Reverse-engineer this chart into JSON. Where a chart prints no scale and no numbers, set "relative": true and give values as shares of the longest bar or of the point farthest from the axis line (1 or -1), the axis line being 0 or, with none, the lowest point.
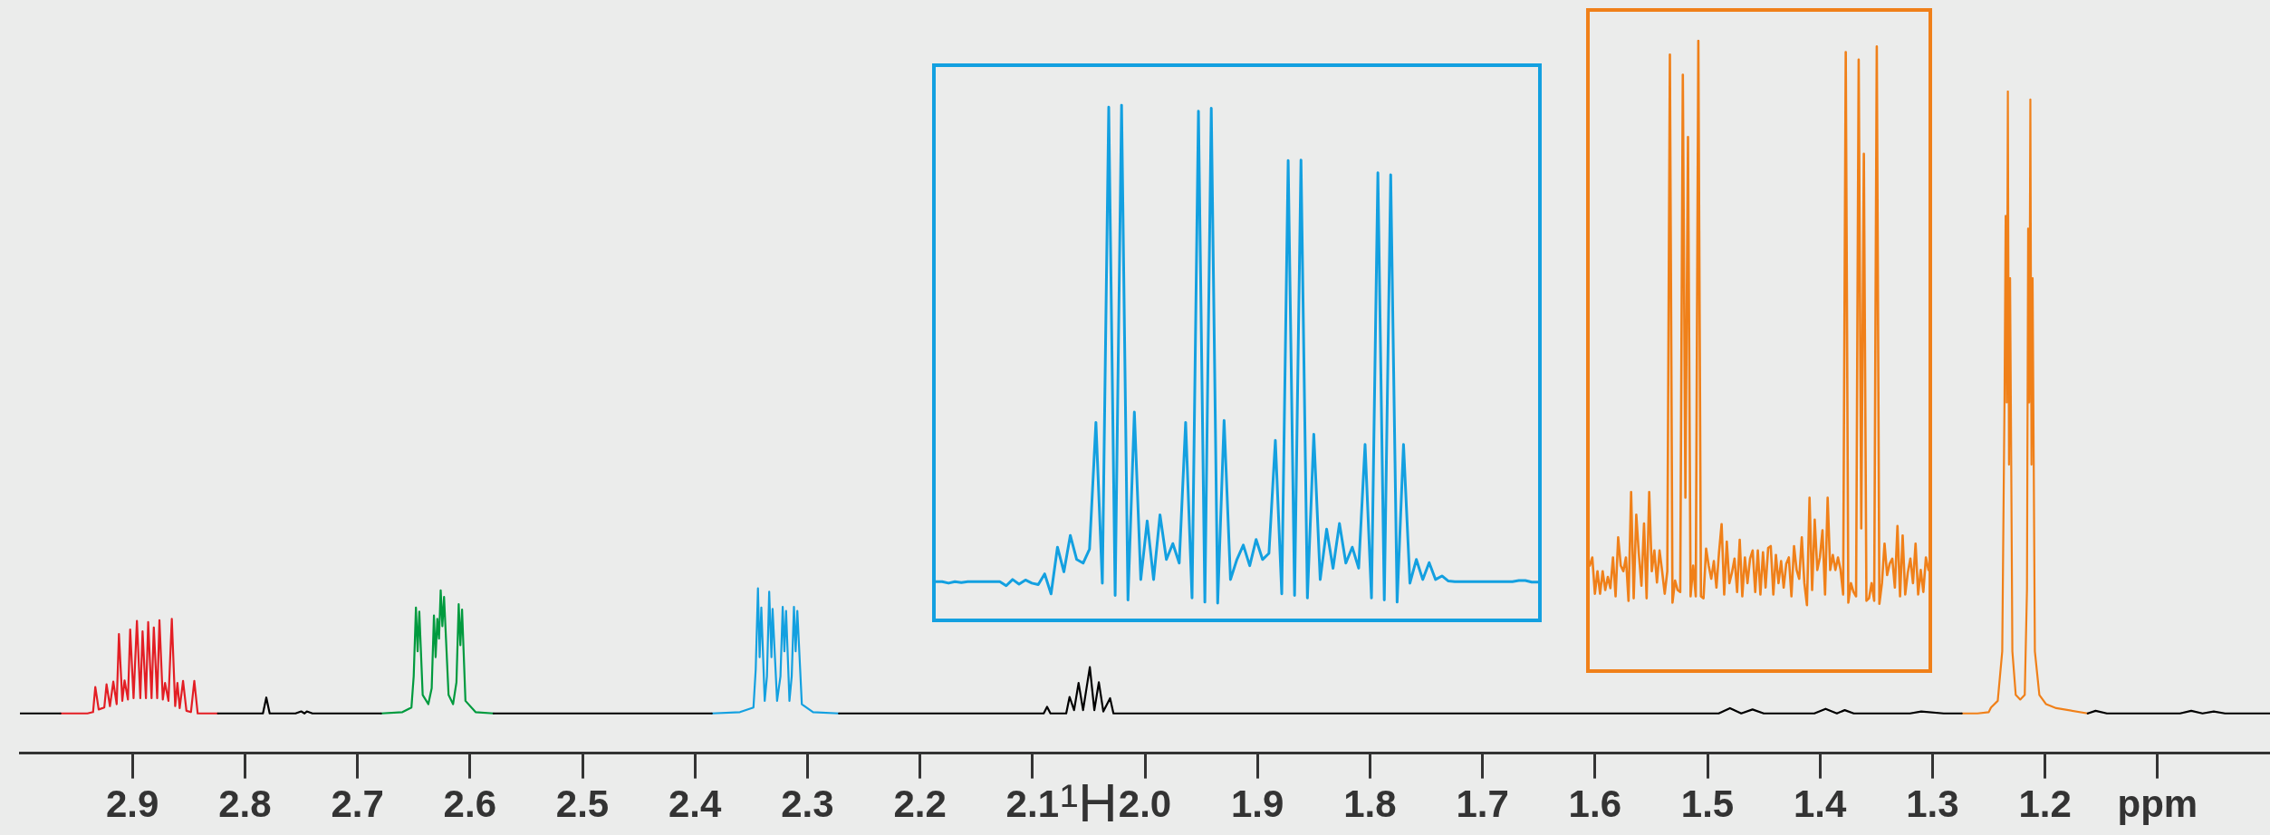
{
  "chart_data": [
    {
      "type": "line",
      "relative": true,
      "xlabel": "¹H",
      "xlim": [
        3.0,
        1.0
      ],
      "xticks": [
        2.9,
        2.8,
        2.7,
        2.6,
        2.5,
        2.4,
        2.3,
        2.2,
        2.1,
        {
          "value": 2.0,
          "label": "2.0"
        },
        1.9,
        1.8,
        1.7,
        1.6,
        1.5,
        1.4,
        1.3,
        1.2,
        {
          "value": 1.1,
          "label": "ppm"
        }
      ],
      "tick_labels": "x",
      "grid": false,
      "marker": "none",
      "line_style": "solid",
      "series": [
        {
          "color": "#000000",
          "x": [
            3.0,
            2.98,
            2.964,
            2.9,
            2.824,
            2.8,
            2.784,
            2.781,
            2.778,
            2.755,
            2.75,
            2.747,
            2.745,
            2.74,
            2.7,
            2.679,
            2.6,
            2.579,
            2.5,
            2.45,
            2.385,
            2.3,
            2.272,
            2.2,
            2.1,
            2.09,
            2.087,
            2.084,
            2.07,
            2.067,
            2.063,
            2.059,
            2.055,
            2.049,
            2.045,
            2.041,
            2.037,
            2.031,
            2.028,
            2.02,
            1.9,
            1.8,
            1.7,
            1.6,
            1.49,
            1.48,
            1.47,
            1.46,
            1.45,
            1.405,
            1.395,
            1.385,
            1.378,
            1.37,
            1.32,
            1.31,
            1.29,
            1.274,
            1.2,
            1.162,
            1.155,
            1.145,
            1.08,
            1.07,
            1.06,
            1.05,
            1.04,
            1.0
          ],
          "values": [
            0.06,
            0.06,
            0.06,
            null,
            0.06,
            0.06,
            0.06,
            0.084,
            0.06,
            0.06,
            0.063,
            0.06,
            0.063,
            0.06,
            0.06,
            0.06,
            null,
            0.06,
            0.06,
            0.06,
            0.06,
            null,
            0.06,
            0.06,
            0.06,
            0.06,
            0.07,
            0.06,
            0.06,
            0.085,
            0.065,
            0.106,
            0.065,
            0.13,
            0.065,
            0.107,
            0.063,
            0.083,
            0.06,
            0.06,
            0.06,
            0.06,
            0.06,
            0.06,
            0.06,
            0.068,
            0.06,
            0.066,
            0.06,
            0.06,
            0.067,
            0.06,
            0.065,
            0.06,
            0.06,
            0.063,
            0.06,
            0.06,
            null,
            0.06,
            0.064,
            0.06,
            0.06,
            0.064,
            0.06,
            0.063,
            0.06,
            0.06
          ]
        },
        {
          "color": "#e31e24",
          "x": [
            2.964,
            2.94,
            2.935,
            2.933,
            2.93,
            2.925,
            2.923,
            2.92,
            2.917,
            2.914,
            2.912,
            2.909,
            2.907,
            2.904,
            2.902,
            2.899,
            2.896,
            2.893,
            2.891,
            2.888,
            2.886,
            2.883,
            2.881,
            2.878,
            2.876,
            2.873,
            2.871,
            2.868,
            2.865,
            2.862,
            2.86,
            2.858,
            2.855,
            2.852,
            2.848,
            2.845,
            2.842,
            2.83,
            2.824
          ],
          "values": [
            0.06,
            0.06,
            0.062,
            0.1,
            0.066,
            0.069,
            0.104,
            0.071,
            0.108,
            0.074,
            0.18,
            0.079,
            0.11,
            0.081,
            0.187,
            0.083,
            0.2,
            0.083,
            0.184,
            0.083,
            0.198,
            0.083,
            0.19,
            0.083,
            0.201,
            0.081,
            0.106,
            0.079,
            0.203,
            0.071,
            0.106,
            0.068,
            0.109,
            0.064,
            0.062,
            0.109,
            0.06,
            0.06,
            0.06
          ]
        },
        {
          "color": "#009a3e",
          "x": [
            2.679,
            2.66,
            2.652,
            2.65,
            2.648,
            2.6465,
            2.645,
            2.642,
            2.637,
            2.634,
            2.632,
            2.6305,
            2.629,
            2.6275,
            2.626,
            2.6245,
            2.623,
            2.619,
            2.615,
            2.612,
            2.61,
            2.6085,
            2.607,
            2.604,
            2.595,
            2.579
          ],
          "values": [
            0.06,
            0.062,
            0.069,
            0.116,
            0.22,
            0.154,
            0.214,
            0.088,
            0.074,
            0.098,
            0.208,
            0.145,
            0.203,
            0.173,
            0.246,
            0.192,
            0.236,
            0.088,
            0.074,
            0.107,
            0.225,
            0.163,
            0.217,
            0.079,
            0.062,
            0.06
          ]
        },
        {
          "color": "#13a0e0",
          "x": [
            2.385,
            2.36,
            2.348,
            2.346,
            2.344,
            2.3425,
            2.341,
            2.338,
            2.336,
            2.334,
            2.332,
            2.331,
            2.327,
            2.324,
            2.322,
            2.3205,
            2.319,
            2.316,
            2.314,
            2.312,
            2.3105,
            2.309,
            2.305,
            2.295,
            2.272
          ],
          "values": [
            0.06,
            0.062,
            0.069,
            0.126,
            0.249,
            0.145,
            0.22,
            0.079,
            0.116,
            0.244,
            0.145,
            0.218,
            0.079,
            0.116,
            0.221,
            0.154,
            0.215,
            0.079,
            0.116,
            0.221,
            0.154,
            0.215,
            0.074,
            0.062,
            0.06
          ]
        },
        {
          "color": "#f08019",
          "x": [
            1.274,
            1.26,
            1.25,
            1.248,
            1.242,
            1.238,
            1.236,
            1.235,
            1.234,
            1.233,
            1.232,
            1.231,
            1.229,
            1.226,
            1.222,
            1.218,
            1.216,
            1.215,
            1.214,
            1.213,
            1.212,
            1.211,
            1.209,
            1.205,
            1.199,
            1.19,
            1.162
          ],
          "values": [
            0.06,
            0.06,
            0.062,
            0.069,
            0.079,
            0.154,
            0.53,
            0.812,
            0.53,
            1.0,
            0.436,
            0.718,
            0.154,
            0.088,
            0.081,
            0.088,
            0.248,
            0.793,
            0.53,
            0.988,
            0.436,
            0.718,
            0.154,
            0.088,
            0.074,
            0.068,
            0.06
          ]
        }
      ]
    },
    {
      "type": "line",
      "relative": true,
      "tick_labels": false,
      "marker": "none",
      "line_style": "solid",
      "categories": [
        null,
        null,
        null,
        null,
        null,
        null,
        null,
        null,
        null,
        null,
        null,
        null,
        null,
        null,
        null,
        null,
        null,
        null,
        null,
        null,
        null,
        null,
        null,
        null,
        null,
        null,
        null,
        null,
        null,
        null,
        null,
        null,
        null,
        null,
        null,
        null,
        null,
        null,
        null,
        null,
        null,
        null,
        null,
        null,
        null,
        null,
        null,
        null,
        null,
        null,
        null,
        null,
        null,
        null,
        null,
        null,
        null,
        null,
        null,
        null,
        null,
        null,
        null,
        null,
        null,
        null,
        null,
        null,
        null,
        null,
        null,
        null,
        null,
        null,
        null,
        null,
        null,
        null,
        null,
        null,
        null,
        null,
        null,
        null,
        null,
        null,
        null,
        null,
        null,
        null,
        null,
        null,
        null,
        null,
        null
      ],
      "series": [
        {
          "color": "#13a0e0",
          "values": [
            0.072,
            0.072,
            0.069,
            0.072,
            0.07,
            0.072,
            0.072,
            0.072,
            0.072,
            0.072,
            0.072,
            0.064,
            0.076,
            0.067,
            0.075,
            0.069,
            0.066,
            0.087,
            0.048,
            0.139,
            0.091,
            0.162,
            0.115,
            0.108,
            0.135,
            0.382,
            0.069,
            0.996,
            0.045,
            1.0,
            0.036,
            0.402,
            0.076,
            0.19,
            0.076,
            0.202,
            0.115,
            0.146,
            0.108,
            0.382,
            0.04,
            0.988,
            0.032,
            0.994,
            0.03,
            0.386,
            0.076,
            0.115,
            0.143,
            0.103,
            0.154,
            0.115,
            0.127,
            0.347,
            0.048,
            0.892,
            0.045,
            0.893,
            0.04,
            0.359,
            0.076,
            0.174,
            0.098,
            0.185,
            0.108,
            0.139,
            0.098,
            0.339,
            0.04,
            0.868,
            0.036,
            0.864,
            0.032,
            0.339,
            0.069,
            0.115,
            0.076,
            0.109,
            0.076,
            0.083,
            0.073,
            0.072,
            0.072,
            0.072,
            0.072,
            0.072,
            0.072,
            0.072,
            0.072,
            0.072,
            0.072,
            0.074,
            0.074,
            0.071,
            0.071
          ]
        }
      ]
    },
    {
      "type": "line",
      "relative": true,
      "tick_labels": false,
      "marker": "none",
      "line_style": "solid",
      "categories": [
        null,
        null,
        null,
        null,
        null,
        null,
        null,
        null,
        null,
        null,
        null,
        null,
        null,
        null,
        null,
        null,
        null,
        null,
        null,
        null,
        null,
        null,
        null,
        null,
        null,
        null,
        null,
        null,
        null,
        null,
        null,
        null,
        null,
        null,
        null,
        null,
        null,
        null,
        null,
        null,
        null,
        null,
        null,
        null,
        null,
        null,
        null,
        null,
        null,
        null,
        null,
        null,
        null,
        null,
        null,
        null,
        null,
        null,
        null,
        null,
        null,
        null,
        null,
        null,
        null,
        null,
        null,
        null,
        null,
        null,
        null,
        null,
        null,
        null,
        null,
        null,
        null,
        null,
        null,
        null,
        null,
        null,
        null,
        null,
        null,
        null,
        null,
        null,
        null,
        null,
        null,
        null,
        null,
        null,
        null,
        null,
        null,
        null,
        null,
        null,
        null,
        null,
        null,
        null,
        null,
        null,
        null,
        null,
        null,
        null,
        null,
        null,
        null,
        null,
        null,
        null,
        null,
        null,
        null,
        null,
        null,
        null,
        null,
        null,
        null,
        null,
        null,
        null,
        null,
        null,
        null,
        null
      ],
      "series": [
        {
          "color": "#f08019",
          "values": [
            0.165,
            0.178,
            0.12,
            0.156,
            0.12,
            0.156,
            0.126,
            0.147,
            0.129,
            0.178,
            0.116,
            0.21,
            0.165,
            0.156,
            0.178,
            0.109,
            0.282,
            0.113,
            0.246,
            0.183,
            0.133,
            0.232,
            0.113,
            0.282,
            0.156,
            0.189,
            0.138,
            0.189,
            0.156,
            0.12,
            0.156,
            0.978,
            0.106,
            0.141,
            0.126,
            0.123,
            0.946,
            0.273,
            0.847,
            0.116,
            0.165,
            0.116,
            1.0,
            0.116,
            0.113,
            0.192,
            0.165,
            0.144,
            0.172,
            0.13,
            0.186,
            0.231,
            0.119,
            0.203,
            0.137,
            0.154,
            0.176,
            0.123,
            0.206,
            0.116,
            0.178,
            0.137,
            0.176,
            0.189,
            0.123,
            0.189,
            0.119,
            0.186,
            0.13,
            0.193,
            0.196,
            0.119,
            0.182,
            0.137,
            0.172,
            0.13,
            0.168,
            0.178,
            0.116,
            0.196,
            0.158,
            0.144,
            0.21,
            0.137,
            0.102,
            0.273,
            0.126,
            0.238,
            0.158,
            0.178,
            0.221,
            0.119,
            0.273,
            0.158,
            0.182,
            0.158,
            0.178,
            0.158,
            0.119,
            0.982,
            0.106,
            0.137,
            0.123,
            0.116,
            0.97,
            0.224,
            0.82,
            0.109,
            0.113,
            0.137,
            0.109,
            0.991,
            0.104,
            0.137,
            0.2,
            0.15,
            0.168,
            0.176,
            0.13,
            0.228,
            0.116,
            0.213,
            0.119,
            0.154,
            0.176,
            0.137,
            0.2,
            0.119,
            0.158,
            0.123,
            0.178,
            0.158
          ]
        }
      ]
    }
  ]
}
